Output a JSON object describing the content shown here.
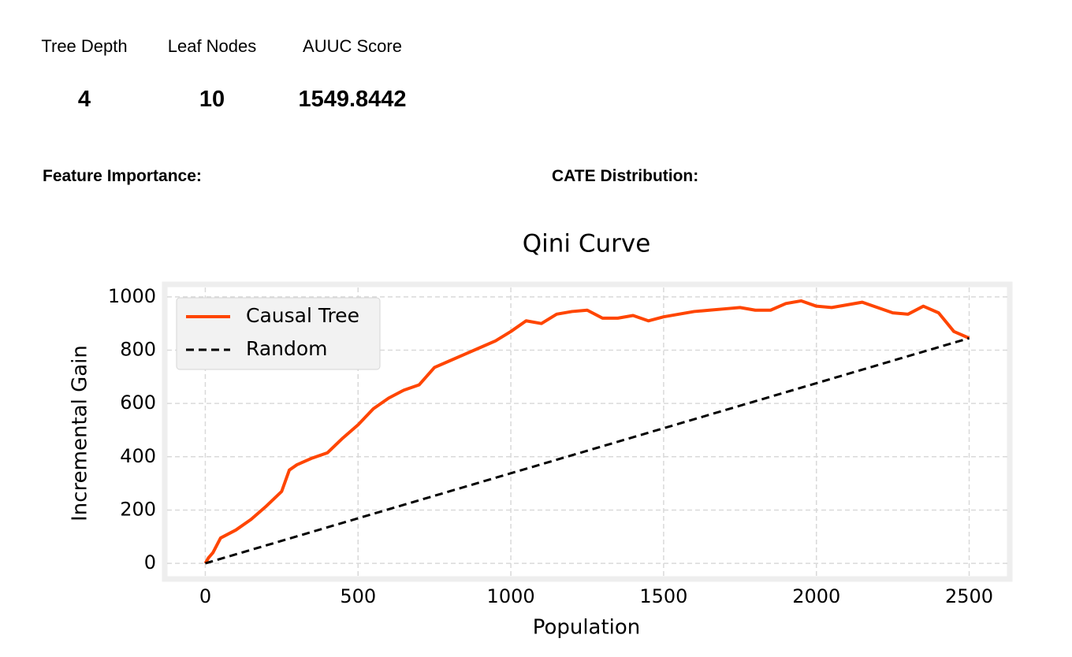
{
  "metrics": [
    {
      "label": "Tree Depth",
      "value": "4"
    },
    {
      "label": "Leaf Nodes",
      "value": "10"
    },
    {
      "label": "AUUC Score",
      "value": "1549.8442"
    }
  ],
  "sections": {
    "feature_importance": "Feature Importance:",
    "cate_distribution": "CATE Distribution:"
  },
  "chart_data": {
    "type": "line",
    "title": "Qini Curve",
    "x_label": "Population",
    "y_label": "Incremental Gain",
    "xlim": [
      -125,
      2625
    ],
    "ylim": [
      -50,
      1035
    ],
    "xticks": [
      0,
      500,
      1000,
      1500,
      2000,
      2500
    ],
    "yticks": [
      0,
      200,
      400,
      600,
      800,
      1000
    ],
    "grid": true,
    "legend": "upper-left",
    "series": [
      {
        "name": "Causal Tree",
        "color": "#ff4500",
        "dash": "solid",
        "x": [
          0,
          10,
          25,
          50,
          100,
          150,
          200,
          250,
          275,
          300,
          350,
          400,
          450,
          500,
          550,
          600,
          650,
          700,
          750,
          800,
          850,
          900,
          950,
          1000,
          1050,
          1100,
          1150,
          1200,
          1250,
          1300,
          1350,
          1400,
          1450,
          1500,
          1550,
          1600,
          1650,
          1700,
          1750,
          1800,
          1850,
          1900,
          1950,
          2000,
          2050,
          2100,
          2150,
          2200,
          2250,
          2300,
          2350,
          2400,
          2450,
          2500
        ],
        "values": [
          0,
          20,
          40,
          95,
          125,
          165,
          215,
          270,
          350,
          370,
          395,
          415,
          470,
          520,
          580,
          620,
          650,
          670,
          735,
          760,
          785,
          810,
          835,
          870,
          910,
          900,
          935,
          945,
          950,
          920,
          920,
          930,
          910,
          925,
          935,
          945,
          950,
          955,
          960,
          950,
          950,
          975,
          985,
          965,
          960,
          970,
          980,
          960,
          940,
          935,
          965,
          940,
          870,
          845
        ]
      },
      {
        "name": "Random",
        "color": "#000000",
        "dash": "dashed",
        "x": [
          0,
          2500
        ],
        "values": [
          0,
          845
        ]
      }
    ]
  }
}
